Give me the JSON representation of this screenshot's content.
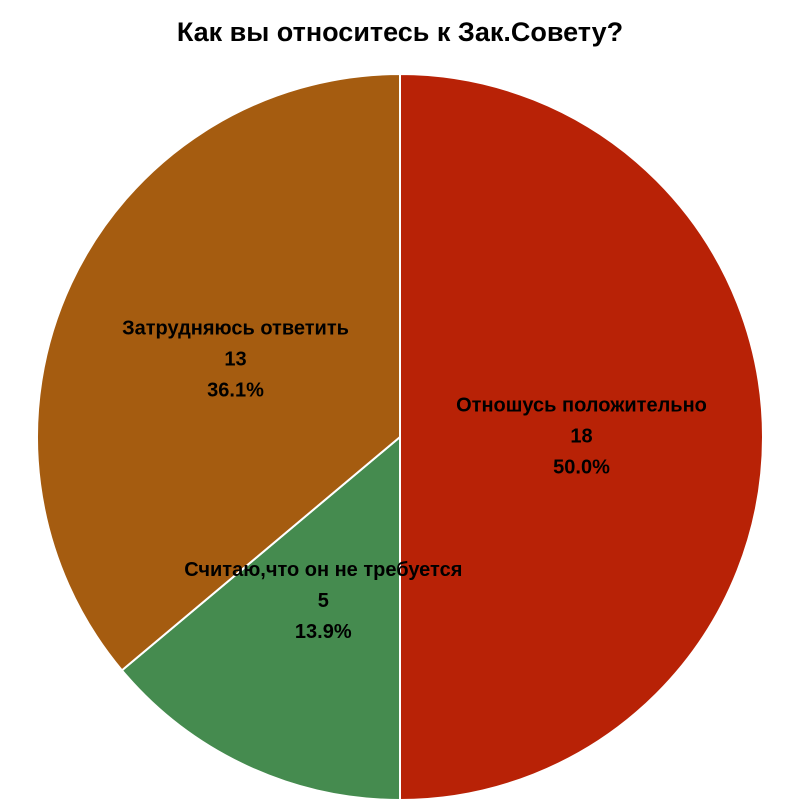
{
  "chart_data": {
    "type": "pie",
    "title": "Как вы относитесь к Зак.Совету?",
    "categories": [
      "Отношусь положительно",
      "Считаю,что он не требуется",
      "Затрудняюсь ответить"
    ],
    "values": [
      18,
      5,
      13
    ],
    "percent_labels": [
      "50.0%",
      "13.9%",
      "36.1%"
    ],
    "colors": [
      "#b82206",
      "#458b4f",
      "#a55c10"
    ]
  }
}
